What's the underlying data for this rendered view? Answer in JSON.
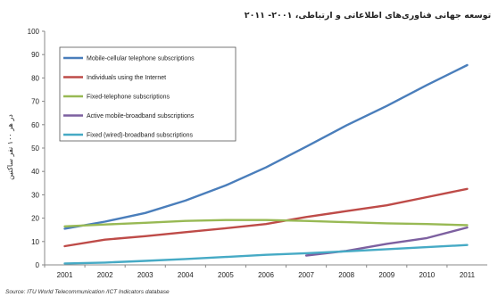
{
  "chart_data": {
    "type": "line",
    "title": "توسعه جهانی فناوری‌های اطلاعاتی و ارتباطی، ۲۰۰۱- ۲۰۱۱",
    "ylabel": "در هر ۱۰۰ نفر ساکنین",
    "xlabel": "",
    "source": "Source: ITU World Telecommunication /ICT Indicators database",
    "categories": [
      "2001",
      "2002",
      "2003",
      "2004",
      "2005",
      "2006",
      "2007",
      "2008",
      "2009",
      "2010",
      "2011"
    ],
    "ylim": [
      0,
      100
    ],
    "yticks": [
      0,
      10,
      20,
      30,
      40,
      50,
      60,
      70,
      80,
      90,
      100
    ],
    "legend_position": "top-left",
    "grid": false,
    "series": [
      {
        "name": "Mobile-cellular telephone subscriptions",
        "color": "#4a7ebb",
        "values": [
          15.5,
          18.5,
          22.2,
          27.5,
          34.0,
          41.7,
          50.6,
          59.7,
          68.0,
          77.0,
          85.5
        ]
      },
      {
        "name": "Individuals using the Internet",
        "color": "#be4b48",
        "values": [
          8.0,
          10.8,
          12.3,
          14.0,
          15.7,
          17.5,
          20.5,
          23.0,
          25.5,
          29.0,
          32.5
        ]
      },
      {
        "name": "Fixed-telephone subscriptions",
        "color": "#98b954",
        "values": [
          16.5,
          17.3,
          18.0,
          18.8,
          19.2,
          19.2,
          18.8,
          18.3,
          17.8,
          17.5,
          17.0
        ]
      },
      {
        "name": "Active mobile-broadband subscriptions",
        "color": "#7d60a0",
        "values": [
          null,
          null,
          null,
          null,
          null,
          null,
          4.0,
          6.0,
          9.0,
          11.5,
          16.0
        ]
      },
      {
        "name": "Fixed (wired)-broadband subscriptions",
        "color": "#46aac5",
        "values": [
          0.6,
          1.0,
          1.7,
          2.5,
          3.4,
          4.3,
          5.0,
          5.8,
          6.7,
          7.6,
          8.5
        ]
      }
    ]
  }
}
